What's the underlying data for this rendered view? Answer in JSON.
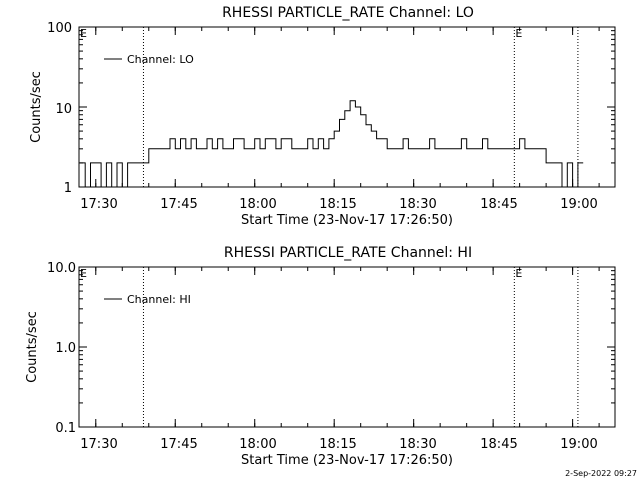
{
  "chart_data": [
    {
      "type": "line",
      "title": "RHESSI PARTICLE_RATE Channel: LO",
      "xlabel": "Start Time (23-Nov-17 17:26:50)",
      "ylabel": "Counts/sec",
      "yscale": "log",
      "ylim": [
        1,
        100
      ],
      "xlim": [
        "17:26:50",
        "19:08:00"
      ],
      "x_ticks": [
        "17:30",
        "17:45",
        "18:00",
        "18:15",
        "18:30",
        "18:45",
        "19:00"
      ],
      "y_ticks": [
        "1",
        "10",
        "100"
      ],
      "legend": {
        "label": "Channel: LO",
        "placement": "top-left"
      },
      "markers": [
        {
          "label": "E",
          "x": "17:26:50"
        },
        {
          "label": "",
          "x": "17:39:00"
        },
        {
          "label": "E",
          "x": "18:49:00"
        },
        {
          "label": "",
          "x": "19:01:00"
        }
      ],
      "series": [
        {
          "name": "Channel: LO",
          "x": [
            "17:27:00",
            "17:28:00",
            "17:29:00",
            "17:30:00",
            "17:31:00",
            "17:32:00",
            "17:33:00",
            "17:34:00",
            "17:35:00",
            "17:36:00",
            "17:37:00",
            "17:38:00",
            "17:39:00",
            "17:40:00",
            "17:41:00",
            "17:42:00",
            "17:43:00",
            "17:44:00",
            "17:45:00",
            "17:46:00",
            "17:47:00",
            "17:48:00",
            "17:49:00",
            "17:50:00",
            "17:51:00",
            "17:52:00",
            "17:53:00",
            "17:54:00",
            "17:55:00",
            "17:56:00",
            "17:57:00",
            "17:58:00",
            "17:59:00",
            "18:00:00",
            "18:01:00",
            "18:02:00",
            "18:03:00",
            "18:04:00",
            "18:05:00",
            "18:06:00",
            "18:07:00",
            "18:08:00",
            "18:09:00",
            "18:10:00",
            "18:11:00",
            "18:12:00",
            "18:13:00",
            "18:14:00",
            "18:15:00",
            "18:16:00",
            "18:17:00",
            "18:18:00",
            "18:19:00",
            "18:20:00",
            "18:21:00",
            "18:22:00",
            "18:23:00",
            "18:24:00",
            "18:25:00",
            "18:26:00",
            "18:27:00",
            "18:28:00",
            "18:29:00",
            "18:30:00",
            "18:31:00",
            "18:32:00",
            "18:33:00",
            "18:34:00",
            "18:35:00",
            "18:36:00",
            "18:37:00",
            "18:38:00",
            "18:39:00",
            "18:40:00",
            "18:41:00",
            "18:42:00",
            "18:43:00",
            "18:44:00",
            "18:45:00",
            "18:46:00",
            "18:47:00",
            "18:48:00",
            "18:49:00",
            "18:50:00",
            "18:51:00",
            "18:52:00",
            "18:53:00",
            "18:54:00",
            "18:55:00",
            "18:56:00",
            "18:57:00",
            "18:58:00",
            "18:59:00",
            "19:00:00",
            "19:01:00"
          ],
          "values": [
            2,
            1,
            2,
            2,
            1,
            2,
            1,
            2,
            1,
            2,
            2,
            2,
            2,
            3,
            3,
            3,
            3,
            4,
            3,
            4,
            3,
            4,
            3,
            3,
            4,
            3,
            4,
            3,
            3,
            4,
            4,
            3,
            3,
            4,
            3,
            4,
            4,
            3,
            4,
            4,
            3,
            3,
            3,
            4,
            3,
            4,
            3,
            4,
            5,
            7,
            9,
            12,
            10,
            8,
            6,
            5,
            4,
            4,
            3,
            3,
            3,
            4,
            3,
            3,
            3,
            3,
            4,
            3,
            3,
            3,
            3,
            3,
            4,
            3,
            3,
            3,
            4,
            3,
            3,
            3,
            3,
            3,
            3,
            4,
            3,
            3,
            3,
            3,
            2,
            2,
            2,
            1,
            2,
            1,
            2
          ]
        }
      ]
    },
    {
      "type": "line",
      "title": "RHESSI PARTICLE_RATE Channel: HI",
      "xlabel": "Start Time (23-Nov-17 17:26:50)",
      "ylabel": "Counts/sec",
      "yscale": "log",
      "ylim": [
        0.1,
        10
      ],
      "xlim": [
        "17:26:50",
        "19:08:00"
      ],
      "x_ticks": [
        "17:30",
        "17:45",
        "18:00",
        "18:15",
        "18:30",
        "18:45",
        "19:00"
      ],
      "y_ticks": [
        "0.1",
        "1.0",
        "10.0"
      ],
      "legend": {
        "label": "Channel: HI",
        "placement": "top-left"
      },
      "markers": [
        {
          "label": "E",
          "x": "17:26:50"
        },
        {
          "label": "",
          "x": "17:39:00"
        },
        {
          "label": "E",
          "x": "18:49:00"
        },
        {
          "label": "",
          "x": "19:01:00"
        }
      ],
      "series": [
        {
          "name": "Channel: HI",
          "x": [],
          "values": []
        }
      ]
    }
  ],
  "footer": {
    "date": "2-Sep-2022 09:27"
  }
}
